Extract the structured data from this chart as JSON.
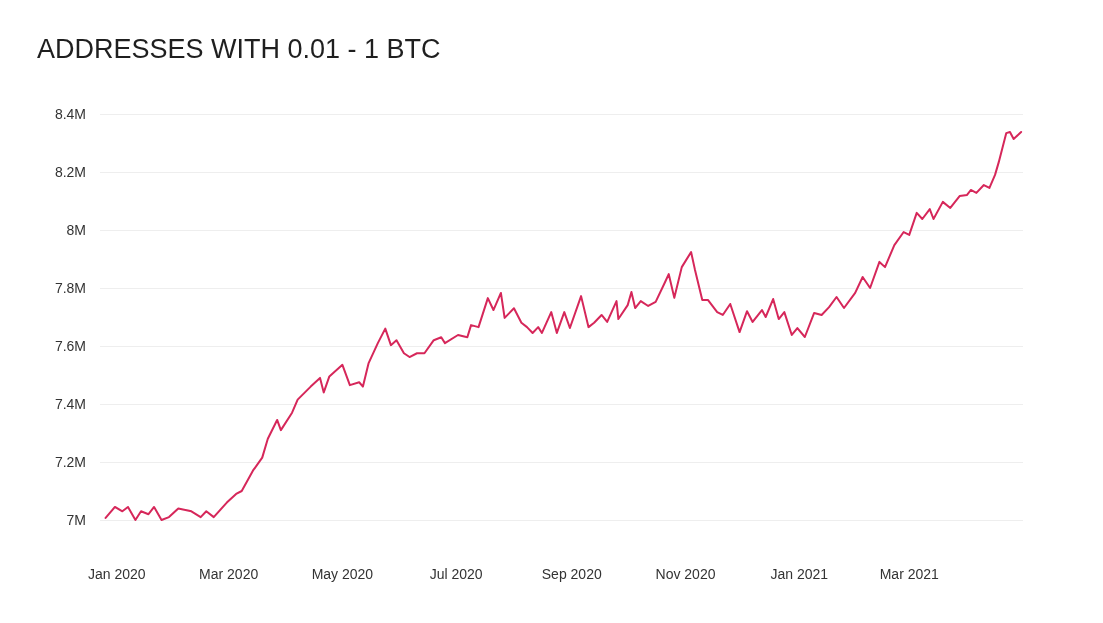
{
  "chart_data": {
    "type": "line",
    "title": "ADDRESSES WITH 0.01 - 1 BTC",
    "xlim": [
      "2019-12-23",
      "2021-05-01"
    ],
    "xticks": [
      {
        "value": "2020-01-01",
        "label": "Jan 2020"
      },
      {
        "value": "2020-03-01",
        "label": "Mar 2020"
      },
      {
        "value": "2020-05-01",
        "label": "May 2020"
      },
      {
        "value": "2020-07-01",
        "label": "Jul 2020"
      },
      {
        "value": "2020-09-01",
        "label": "Sep 2020"
      },
      {
        "value": "2020-11-01",
        "label": "Nov 2020"
      },
      {
        "value": "2021-01-01",
        "label": "Jan 2021"
      },
      {
        "value": "2021-03-01",
        "label": "Mar 2021"
      }
    ],
    "ylim": [
      7,
      8.4
    ],
    "yticks": [
      {
        "value": 7,
        "label": "7M"
      },
      {
        "value": 7.2,
        "label": "7.2M"
      },
      {
        "value": 7.4,
        "label": "7.4M"
      },
      {
        "value": 7.6,
        "label": "7.6M"
      },
      {
        "value": 7.8,
        "label": "7.8M"
      },
      {
        "value": 8,
        "label": "8M"
      },
      {
        "value": 8.2,
        "label": "8.2M"
      },
      {
        "value": 8.4,
        "label": "8.4M"
      }
    ],
    "grid": "y",
    "marker": "none",
    "line_style": "solid",
    "series": [
      {
        "color": "#d6275a",
        "x": [
          "2019-12-26",
          "2019-12-31",
          "2020-01-04",
          "2020-01-07",
          "2020-01-11",
          "2020-01-14",
          "2020-01-18",
          "2020-01-21",
          "2020-01-25",
          "2020-01-29",
          "2020-02-03",
          "2020-02-10",
          "2020-02-15",
          "2020-02-18",
          "2020-02-22",
          "2020-02-29",
          "2020-03-05",
          "2020-03-08",
          "2020-03-14",
          "2020-03-19",
          "2020-03-22",
          "2020-03-27",
          "2020-03-29",
          "2020-04-04",
          "2020-04-07",
          "2020-04-14",
          "2020-04-19",
          "2020-04-21",
          "2020-04-24",
          "2020-05-01",
          "2020-05-05",
          "2020-05-10",
          "2020-05-12",
          "2020-05-15",
          "2020-05-20",
          "2020-05-24",
          "2020-05-27",
          "2020-05-30",
          "2020-06-03",
          "2020-06-06",
          "2020-06-10",
          "2020-06-14",
          "2020-06-19",
          "2020-06-23",
          "2020-06-25",
          "2020-07-02",
          "2020-07-07",
          "2020-07-09",
          "2020-07-13",
          "2020-07-18",
          "2020-07-21",
          "2020-07-25",
          "2020-07-27",
          "2020-08-01",
          "2020-08-05",
          "2020-08-08",
          "2020-08-11",
          "2020-08-14",
          "2020-08-16",
          "2020-08-21",
          "2020-08-24",
          "2020-08-28",
          "2020-08-31",
          "2020-09-06",
          "2020-09-10",
          "2020-09-13",
          "2020-09-17",
          "2020-09-20",
          "2020-09-25",
          "2020-09-26",
          "2020-10-01",
          "2020-10-03",
          "2020-10-05",
          "2020-10-08",
          "2020-10-12",
          "2020-10-16",
          "2020-10-21",
          "2020-10-23",
          "2020-10-26",
          "2020-10-30",
          "2020-11-04",
          "2020-11-06",
          "2020-11-10",
          "2020-11-13",
          "2020-11-18",
          "2020-11-21",
          "2020-11-25",
          "2020-11-30",
          "2020-12-04",
          "2020-12-07",
          "2020-12-12",
          "2020-12-14",
          "2020-12-18",
          "2020-12-21",
          "2020-12-24",
          "2020-12-28",
          "2020-12-31",
          "2021-01-04",
          "2021-01-09",
          "2021-01-13",
          "2021-01-17",
          "2021-01-21",
          "2021-01-25",
          "2021-01-31",
          "2021-02-04",
          "2021-02-08",
          "2021-02-13",
          "2021-02-16",
          "2021-02-21",
          "2021-02-26",
          "2021-03-01",
          "2021-03-05",
          "2021-03-08",
          "2021-03-12",
          "2021-03-14",
          "2021-03-19",
          "2021-03-23",
          "2021-03-28",
          "2021-04-01",
          "2021-04-03",
          "2021-04-06",
          "2021-04-10",
          "2021-04-13",
          "2021-04-16",
          "2021-04-18",
          "2021-04-22",
          "2021-04-24",
          "2021-04-26",
          "2021-04-30"
        ],
        "values": [
          7.007,
          7.045,
          7.03,
          7.045,
          7.0,
          7.03,
          7.02,
          7.045,
          7.0,
          7.01,
          7.04,
          7.03,
          7.01,
          7.03,
          7.01,
          7.06,
          7.09,
          7.1,
          7.17,
          7.215,
          7.28,
          7.345,
          7.31,
          7.37,
          7.415,
          7.46,
          7.49,
          7.44,
          7.495,
          7.535,
          7.465,
          7.475,
          7.46,
          7.54,
          7.61,
          7.66,
          7.603,
          7.62,
          7.575,
          7.562,
          7.575,
          7.575,
          7.62,
          7.63,
          7.61,
          7.638,
          7.63,
          7.672,
          7.665,
          7.765,
          7.724,
          7.783,
          7.697,
          7.73,
          7.68,
          7.665,
          7.645,
          7.665,
          7.645,
          7.717,
          7.645,
          7.717,
          7.662,
          7.772,
          7.665,
          7.68,
          7.707,
          7.683,
          7.755,
          7.693,
          7.741,
          7.786,
          7.731,
          7.755,
          7.738,
          7.752,
          7.82,
          7.848,
          7.766,
          7.872,
          7.924,
          7.865,
          7.759,
          7.759,
          7.717,
          7.707,
          7.745,
          7.648,
          7.72,
          7.683,
          7.724,
          7.7,
          7.762,
          7.693,
          7.717,
          7.638,
          7.662,
          7.631,
          7.714,
          7.707,
          7.734,
          7.769,
          7.731,
          7.783,
          7.838,
          7.8,
          7.89,
          7.872,
          7.948,
          7.993,
          7.983,
          8.059,
          8.038,
          8.072,
          8.038,
          8.097,
          8.076,
          8.117,
          8.121,
          8.138,
          8.128,
          8.155,
          8.145,
          8.19,
          8.234,
          8.334,
          8.338,
          8.314,
          8.338
        ]
      }
    ]
  }
}
